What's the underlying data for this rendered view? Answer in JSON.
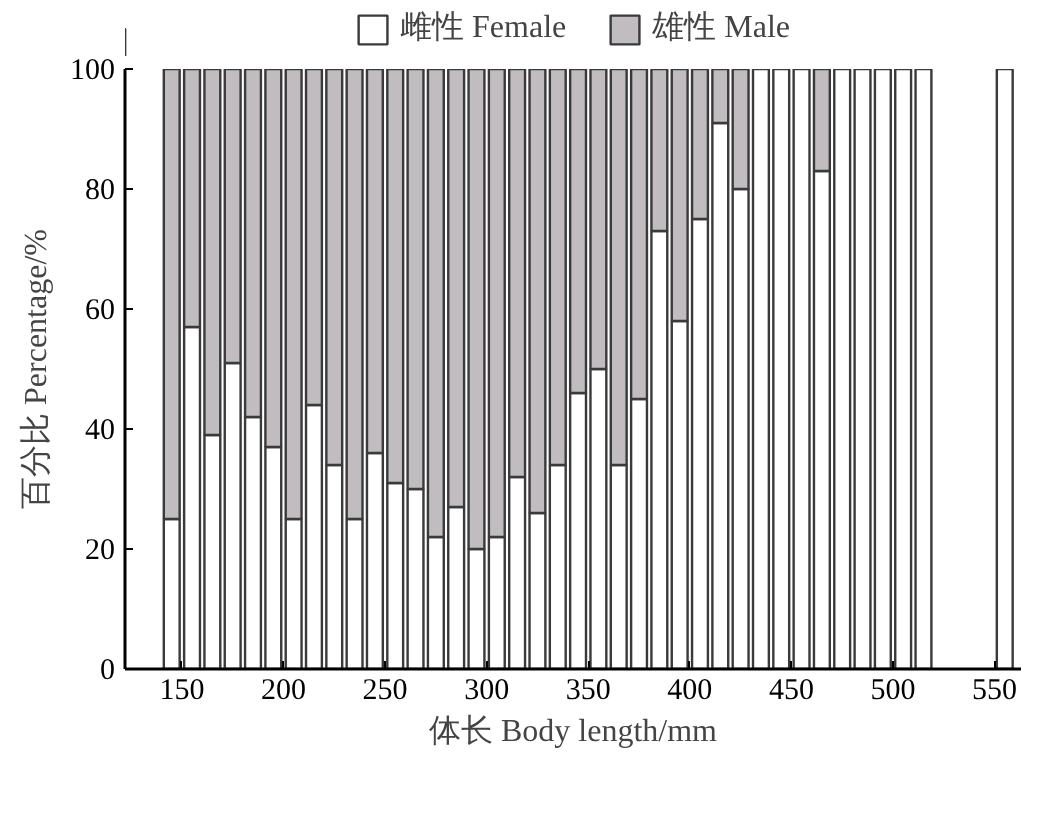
{
  "chart_data": {
    "type": "bar",
    "stacked": true,
    "xlabel": "体长 Body length/mm",
    "ylabel": "百分比 Percentage/%",
    "x": [
      145,
      155,
      165,
      175,
      185,
      195,
      205,
      215,
      225,
      235,
      245,
      255,
      265,
      275,
      285,
      295,
      305,
      315,
      325,
      335,
      345,
      355,
      365,
      375,
      385,
      395,
      405,
      415,
      425,
      435,
      445,
      455,
      465,
      475,
      485,
      495,
      505,
      515,
      555
    ],
    "series": [
      {
        "name": "雌性 Female",
        "color": "#ffffff",
        "values": [
          25,
          57,
          39,
          51,
          42,
          37,
          25,
          44,
          34,
          25,
          36,
          31,
          30,
          22,
          27,
          20,
          22,
          32,
          26,
          34,
          46,
          50,
          34,
          45,
          73,
          58,
          75,
          91,
          80,
          100,
          100,
          100,
          83,
          100,
          100,
          100,
          100,
          100,
          100
        ]
      },
      {
        "name": "雄性 Male",
        "color": "#c0bcc0",
        "values": [
          75,
          43,
          61,
          49,
          58,
          63,
          75,
          56,
          66,
          75,
          64,
          69,
          70,
          78,
          73,
          80,
          78,
          68,
          74,
          66,
          54,
          50,
          66,
          55,
          27,
          42,
          25,
          9,
          20,
          0,
          0,
          0,
          17,
          0,
          0,
          0,
          0,
          0,
          0
        ]
      }
    ],
    "xlim": [
      122,
      563
    ],
    "xticks": [
      150,
      200,
      250,
      300,
      350,
      400,
      450,
      500,
      550
    ],
    "ylim": [
      0,
      100
    ],
    "yticks": [
      0,
      20,
      40,
      60,
      80,
      100
    ],
    "legend": "top"
  }
}
